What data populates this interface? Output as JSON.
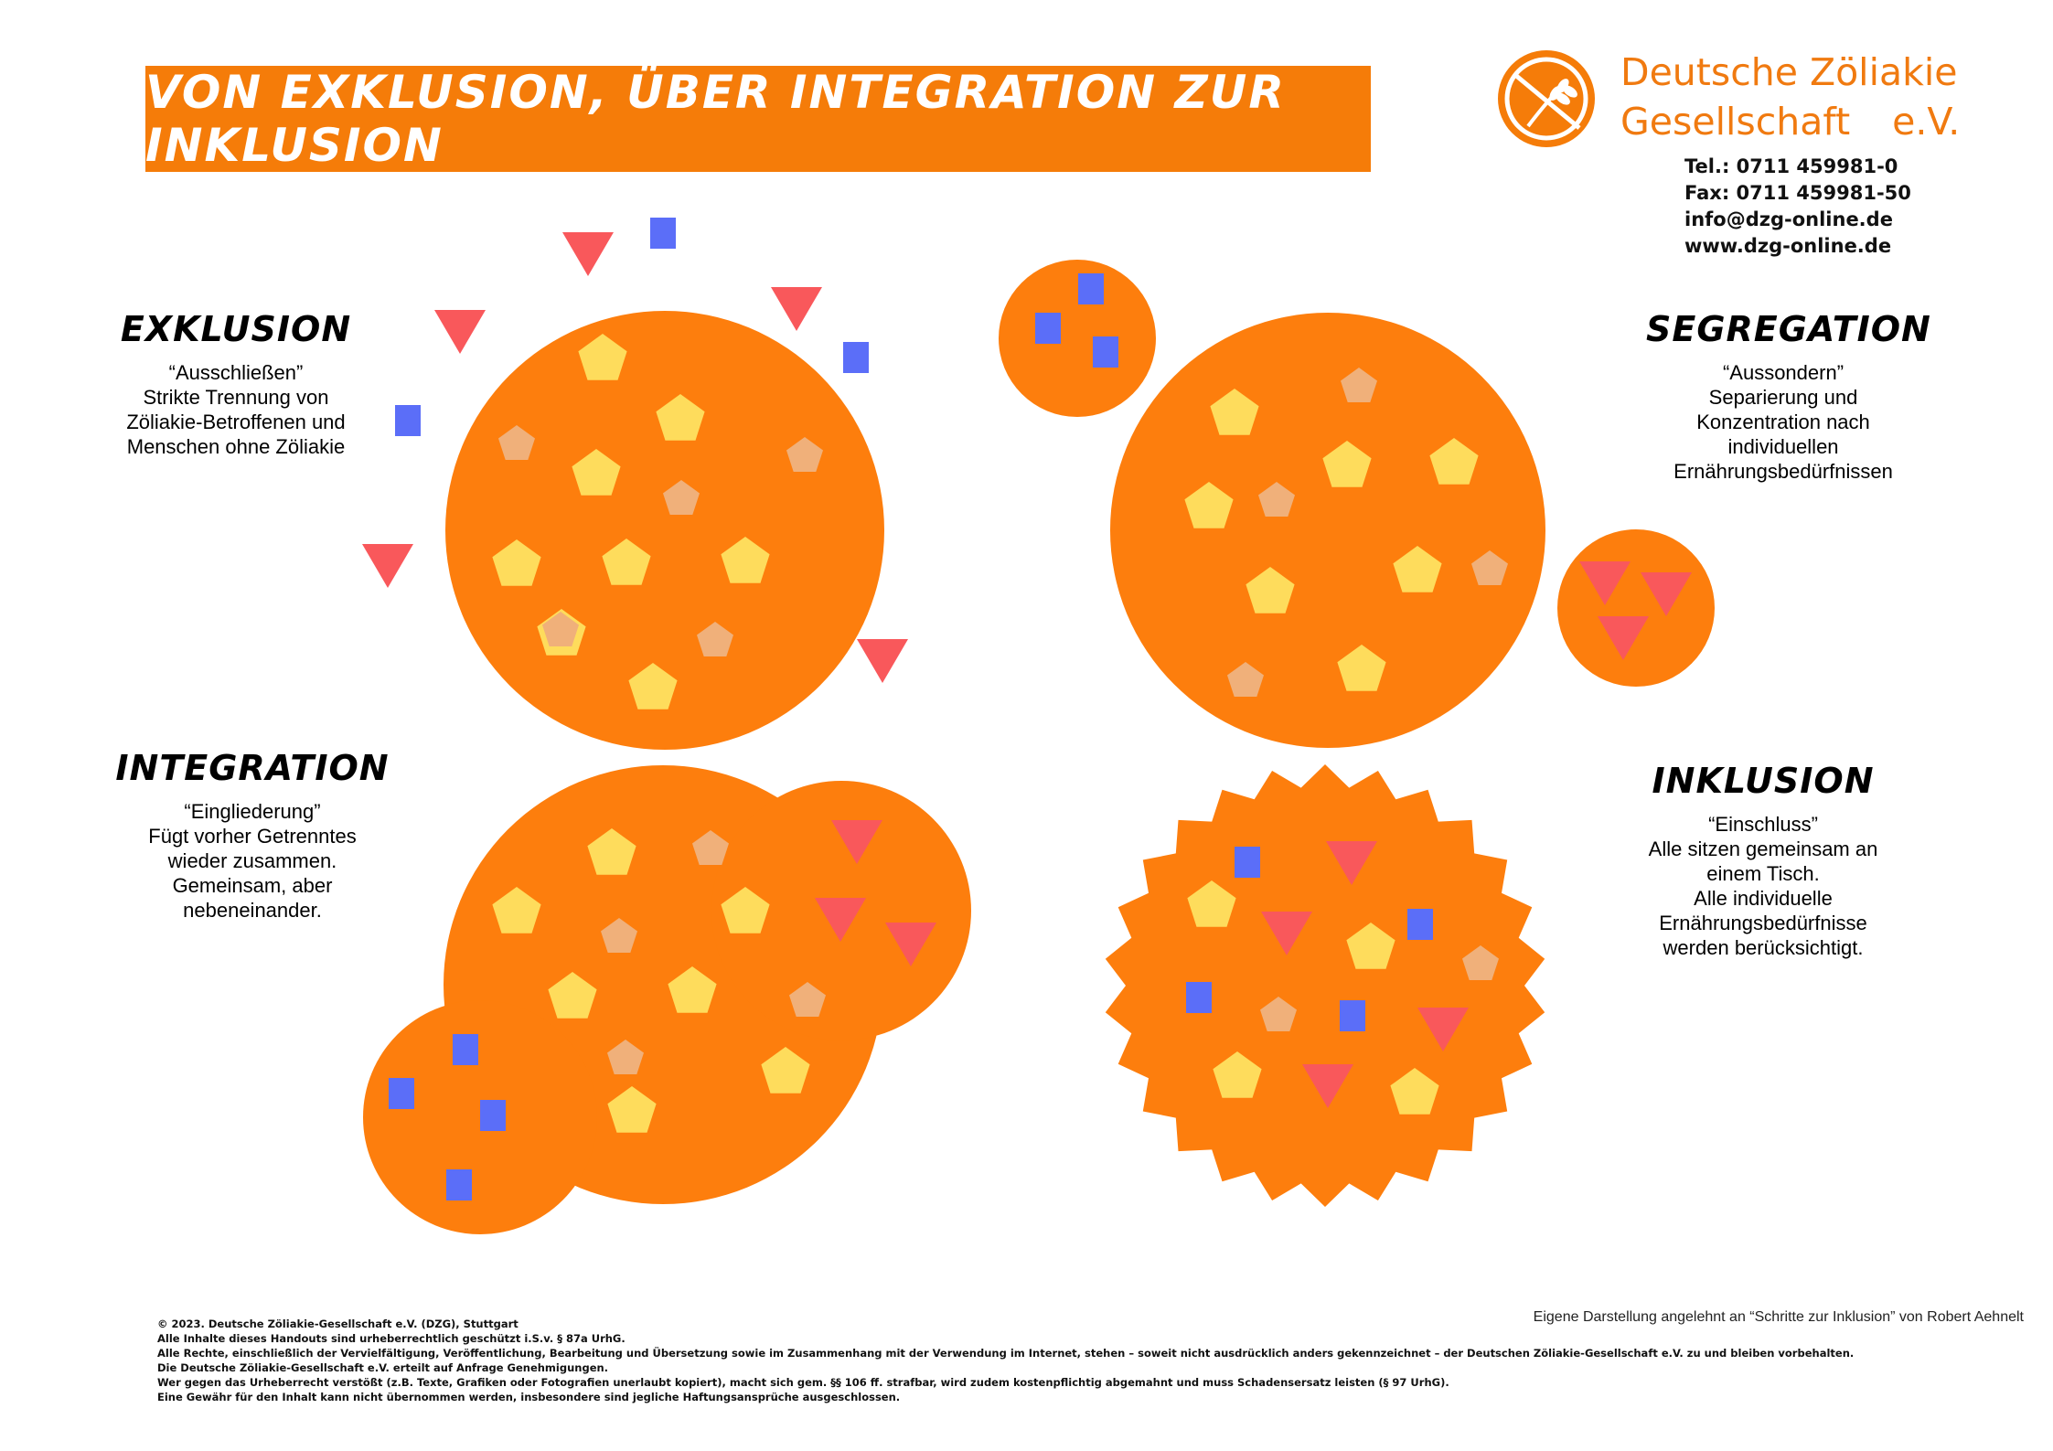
{
  "title": "VON EXKLUSION, ÜBER INTEGRATION ZUR INKLUSION",
  "organization": {
    "name_line1": "Deutsche Zöliakie",
    "name_line2": "Gesellschaft",
    "name_suffix": "e.V.",
    "logo_icon": "gluten-free-wheat-logo-icon",
    "phone": "Tel.: 0711 459981-0",
    "fax": "Fax: 0711 459981-50",
    "email": "info@dzg-online.de",
    "website": "www.dzg-online.de"
  },
  "colors": {
    "accent": "#f57c09",
    "circle": "#fd7e0d",
    "pentagon_yellow": "#fedc5c",
    "pentagon_light": "#f0b07a",
    "triangle": "#f9585b",
    "square": "#5b6ef8"
  },
  "stages": {
    "exklusion": {
      "heading": "EXKLUSION",
      "lines": [
        "“Ausschließen”",
        "Strikte Trennung von",
        "Zöliakie-Betroffenen und",
        "Menschen ohne Zöliakie"
      ]
    },
    "segregation": {
      "heading": "SEGREGATION",
      "lines": [
        "“Aussondern”",
        "Separierung und",
        "Konzentration nach",
        "individuellen",
        "Ernährungsbedürfnissen"
      ]
    },
    "integration": {
      "heading": "INTEGRATION",
      "lines": [
        "“Eingliederung”",
        "Fügt vorher Getrenntes",
        "wieder zusammen.",
        "Gemeinsam, aber",
        "nebeneinander."
      ]
    },
    "inklusion": {
      "heading": "INKLUSION",
      "lines": [
        "“Einschluss”",
        "Alle sitzen gemeinsam an",
        "einem Tisch.",
        "Alle individuelle",
        "Ernährungsbedürfnisse",
        "werden berücksichtigt."
      ]
    }
  },
  "source_note": "Eigene Darstellung angelehnt an “Schritte zur Inklusion” von Robert Aehnelt",
  "footer": [
    "© 2023. Deutsche Zöliakie-Gesellschaft e.V. (DZG), Stuttgart",
    " Alle Inhalte dieses Handouts sind urheberrechtlich geschützt i.S.v. § 87a UrhG.",
    "Alle Rechte, einschließlich der Vervielfältigung, Veröffentlichung, Bearbeitung und Übersetzung sowie im Zusammenhang mit der Verwendung im Internet, stehen – soweit nicht ausdrücklich anders gekennzeichnet – der Deutschen Zöliakie-Gesellschaft e.V. zu und bleiben vorbehalten.",
    "Die Deutsche Zöliakie-Gesellschaft e.V. erteilt auf Anfrage Genehmigungen.",
    "Wer gegen das Urheberrecht verstößt (z.B. Texte, Grafiken oder Fotografien unerlaubt kopiert), macht sich gem. §§ 106 ff. strafbar, wird zudem kostenpflichtig abgemahnt und muss Schadensersatz leisten (§ 97 UrhG).",
    "Eine Gewähr für den Inhalt kann nicht übernommen werden, insbesondere sind jegliche Haftungsansprüche ausgeschlossen."
  ]
}
